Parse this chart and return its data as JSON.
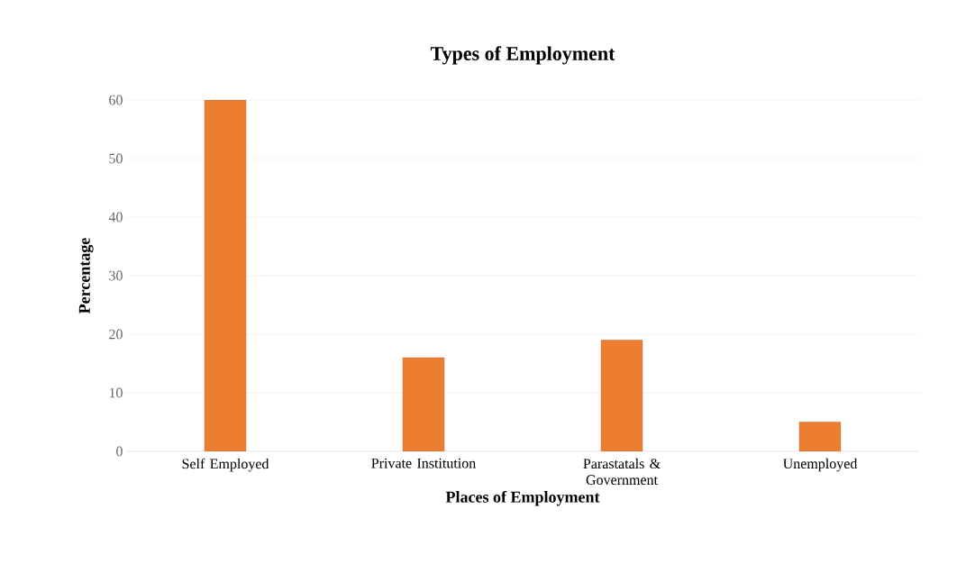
{
  "chart_data": {
    "type": "bar",
    "title": "Types of Employment",
    "xlabel": "Places of Employment",
    "ylabel": "Percentage",
    "categories": [
      "Self Employed",
      "Private Institution",
      "Parastatals & Government",
      "Unemployed"
    ],
    "values": [
      60,
      16,
      19,
      5
    ],
    "color": "#ed7d31",
    "ylim": [
      0,
      60
    ],
    "yticks": [
      0,
      10,
      20,
      30,
      40,
      50,
      60
    ],
    "grid": "y"
  }
}
